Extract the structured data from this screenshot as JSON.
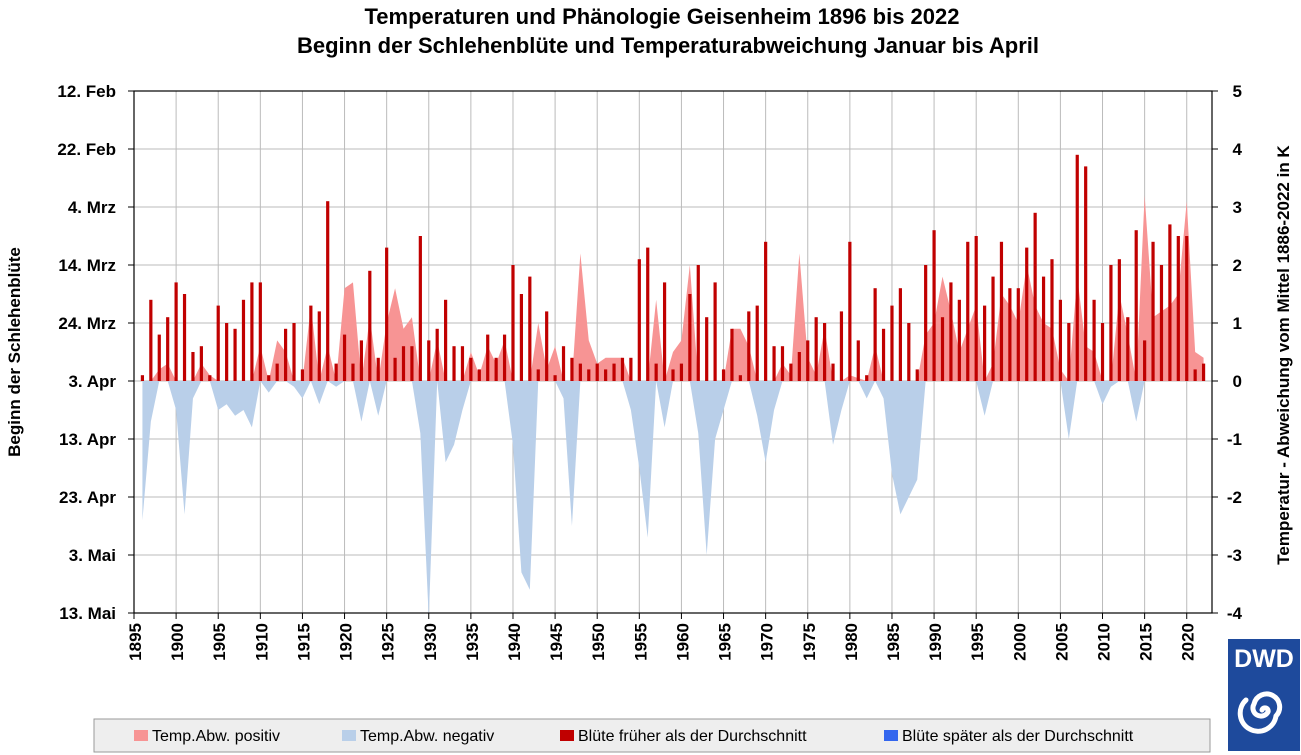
{
  "chart_data": {
    "type": "bar",
    "title": "Temperaturen und Phänologie Geisenheim 1896 bis 2022",
    "subtitle": "Beginn der Schlehenblüte und Temperaturabweichung Januar bis April",
    "ylabel_left": "Beginn der Schlehenblüte",
    "ylabel_right": "Temperatur - Abweichung vom Mittel 1886-2022 in K",
    "xlim": [
      1895,
      2023
    ],
    "x_ticks": [
      1895,
      1900,
      1905,
      1910,
      1915,
      1920,
      1925,
      1930,
      1935,
      1940,
      1945,
      1950,
      1955,
      1960,
      1965,
      1970,
      1975,
      1980,
      1985,
      1990,
      1995,
      2000,
      2005,
      2010,
      2015,
      2020
    ],
    "x_tick_labels": [
      "1895",
      "1900",
      "1905",
      "1910",
      "1915",
      "1920",
      "1925",
      "1930",
      "1935",
      "1940",
      "1945",
      "1950",
      "1955",
      "1960",
      "1965",
      "1970",
      "1975",
      "1980",
      "1985",
      "1990",
      "1995",
      "2000",
      "2005",
      "2010",
      "2015",
      "2020"
    ],
    "y_left_ticks": [
      {
        "label": "12. Feb",
        "offset": -50
      },
      {
        "label": "22. Feb",
        "offset": -40
      },
      {
        "label": "4. Mrz",
        "offset": -30
      },
      {
        "label": "14. Mrz",
        "offset": -20
      },
      {
        "label": "24. Mrz",
        "offset": -10
      },
      {
        "label": "3. Apr",
        "offset": 0
      },
      {
        "label": "13. Apr",
        "offset": 10
      },
      {
        "label": "23. Apr",
        "offset": 20
      },
      {
        "label": "3. Mai",
        "offset": 30
      },
      {
        "label": "13. Mai",
        "offset": 40
      }
    ],
    "y_left_range_days": [
      -50,
      40
    ],
    "y_right_ticks": [
      5,
      4,
      3,
      2,
      1,
      0,
      -1,
      -2,
      -3,
      -4
    ],
    "y_right_range": [
      -4,
      5
    ],
    "years": [
      1896,
      1897,
      1898,
      1899,
      1900,
      1901,
      1902,
      1903,
      1904,
      1905,
      1906,
      1907,
      1908,
      1909,
      1910,
      1911,
      1912,
      1913,
      1914,
      1915,
      1916,
      1917,
      1918,
      1919,
      1920,
      1921,
      1922,
      1923,
      1924,
      1925,
      1926,
      1927,
      1928,
      1929,
      1930,
      1931,
      1932,
      1933,
      1934,
      1935,
      1936,
      1937,
      1938,
      1939,
      1940,
      1941,
      1942,
      1943,
      1944,
      1945,
      1946,
      1947,
      1948,
      1949,
      1950,
      1951,
      1952,
      1953,
      1954,
      1955,
      1956,
      1957,
      1958,
      1959,
      1960,
      1961,
      1962,
      1963,
      1964,
      1965,
      1966,
      1967,
      1968,
      1969,
      1970,
      1971,
      1972,
      1973,
      1974,
      1975,
      1976,
      1977,
      1978,
      1979,
      1980,
      1981,
      1982,
      1983,
      1984,
      1985,
      1986,
      1987,
      1988,
      1989,
      1990,
      1991,
      1992,
      1993,
      1994,
      1995,
      1996,
      1997,
      1998,
      1999,
      2000,
      2001,
      2002,
      2003,
      2004,
      2005,
      2006,
      2007,
      2008,
      2009,
      2010,
      2011,
      2012,
      2013,
      2014,
      2015,
      2016,
      2017,
      2018,
      2019,
      2020,
      2021,
      2022
    ],
    "series": [
      {
        "name": "Temp.Abw. positiv / Temp.Abw. negativ",
        "color_positive": "#f79494",
        "color_negative": "#b9cfe9",
        "axis": "right",
        "values": [
          -2.4,
          -0.7,
          0.2,
          0.3,
          -0.5,
          -2.3,
          -0.3,
          0.3,
          0.1,
          -0.5,
          -0.4,
          -0.6,
          -0.5,
          -0.8,
          0.6,
          -0.2,
          0.7,
          0.5,
          -0.1,
          -0.3,
          1.3,
          -0.4,
          0.6,
          -0.1,
          1.6,
          1.7,
          -0.7,
          1.1,
          -0.6,
          1.0,
          1.6,
          0.9,
          1.1,
          -0.9,
          -4.1,
          0.7,
          -1.4,
          -1.1,
          -0.5,
          0.5,
          0.1,
          0.6,
          0.3,
          0.7,
          -1.1,
          -3.3,
          -3.6,
          1.0,
          0.2,
          0.6,
          -0.3,
          -2.5,
          2.2,
          0.7,
          0.3,
          0.4,
          0.4,
          0.4,
          -0.5,
          -1.5,
          -2.7,
          1.4,
          -0.8,
          0.5,
          0.7,
          2.0,
          -0.9,
          -3.0,
          -1.0,
          -0.5,
          0.9,
          0.9,
          0.6,
          -0.6,
          -1.4,
          -0.5,
          0.3,
          0.1,
          2.2,
          0.4,
          0.1,
          0.9,
          -1.1,
          -0.5,
          0.1,
          0.05,
          -0.3,
          0.6,
          -0.3,
          -1.6,
          -2.3,
          -2.0,
          -1.7,
          0.8,
          1.0,
          1.8,
          1.2,
          0.5,
          0.9,
          1.3,
          -0.6,
          0.3,
          1.5,
          1.3,
          1.0,
          2.0,
          1.3,
          1.0,
          0.9,
          0.2,
          -1.0,
          1.8,
          0.6,
          0.5,
          -0.4,
          -0.1,
          1.5,
          0.8,
          -0.7,
          3.2,
          1.1,
          1.2,
          1.3,
          1.5,
          3.1,
          0.5,
          0.4
        ]
      },
      {
        "name": "Blüte früher als der Durchschnitt / Blüte später als der Durchschnitt",
        "color_early": "#c00000",
        "color_late": "#3366ee",
        "axis": "left",
        "unit": "days relative to 3. Apr (negative = earlier)",
        "values": [
          -1,
          -14,
          -8,
          -11,
          -17,
          -15,
          -5,
          -6,
          -1,
          -13,
          -10,
          -9,
          -14,
          -17,
          -17,
          -1,
          -3,
          -9,
          -10,
          -2,
          -13,
          -12,
          -31,
          -3,
          -8,
          -3,
          -7,
          -19,
          -4,
          -23,
          -4,
          -6,
          -6,
          -25,
          -7,
          -9,
          -14,
          -6,
          -6,
          -4,
          -2,
          -8,
          -4,
          -8,
          -20,
          -15,
          -18,
          -2,
          -12,
          -1,
          -6,
          -4,
          -3,
          -2,
          -3,
          -2,
          -3,
          -4,
          -4,
          -21,
          -23,
          -3,
          -17,
          -2,
          -3,
          -15,
          -20,
          -11,
          -17,
          -2,
          -9,
          -1,
          -12,
          -13,
          -24,
          -6,
          -6,
          -3,
          -5,
          -7,
          -11,
          -10,
          -3,
          -12,
          -24,
          -7,
          -1,
          -16,
          -9,
          -13,
          -16,
          -10,
          -2,
          -20,
          -26,
          -11,
          -17,
          -14,
          -24,
          -25,
          -13,
          -18,
          -24,
          -16,
          -16,
          -23,
          -29,
          -18,
          -21,
          -14,
          -10,
          -39,
          -37,
          -14,
          -10,
          -20,
          -21,
          -11,
          -26,
          -7,
          -24,
          -20,
          -27,
          -25,
          -25,
          -2,
          -3
        ]
      }
    ],
    "legend": {
      "placement": "bottom",
      "entries": [
        "Temp.Abw. positiv",
        "Temp.Abw. negativ",
        "Blüte früher als der Durchschnitt",
        "Blüte später als der Durchschnitt"
      ]
    },
    "grid": true
  },
  "logo": {
    "text": "DWD",
    "icon": "dwd-swirl-icon",
    "color": "#1e4a9c"
  }
}
